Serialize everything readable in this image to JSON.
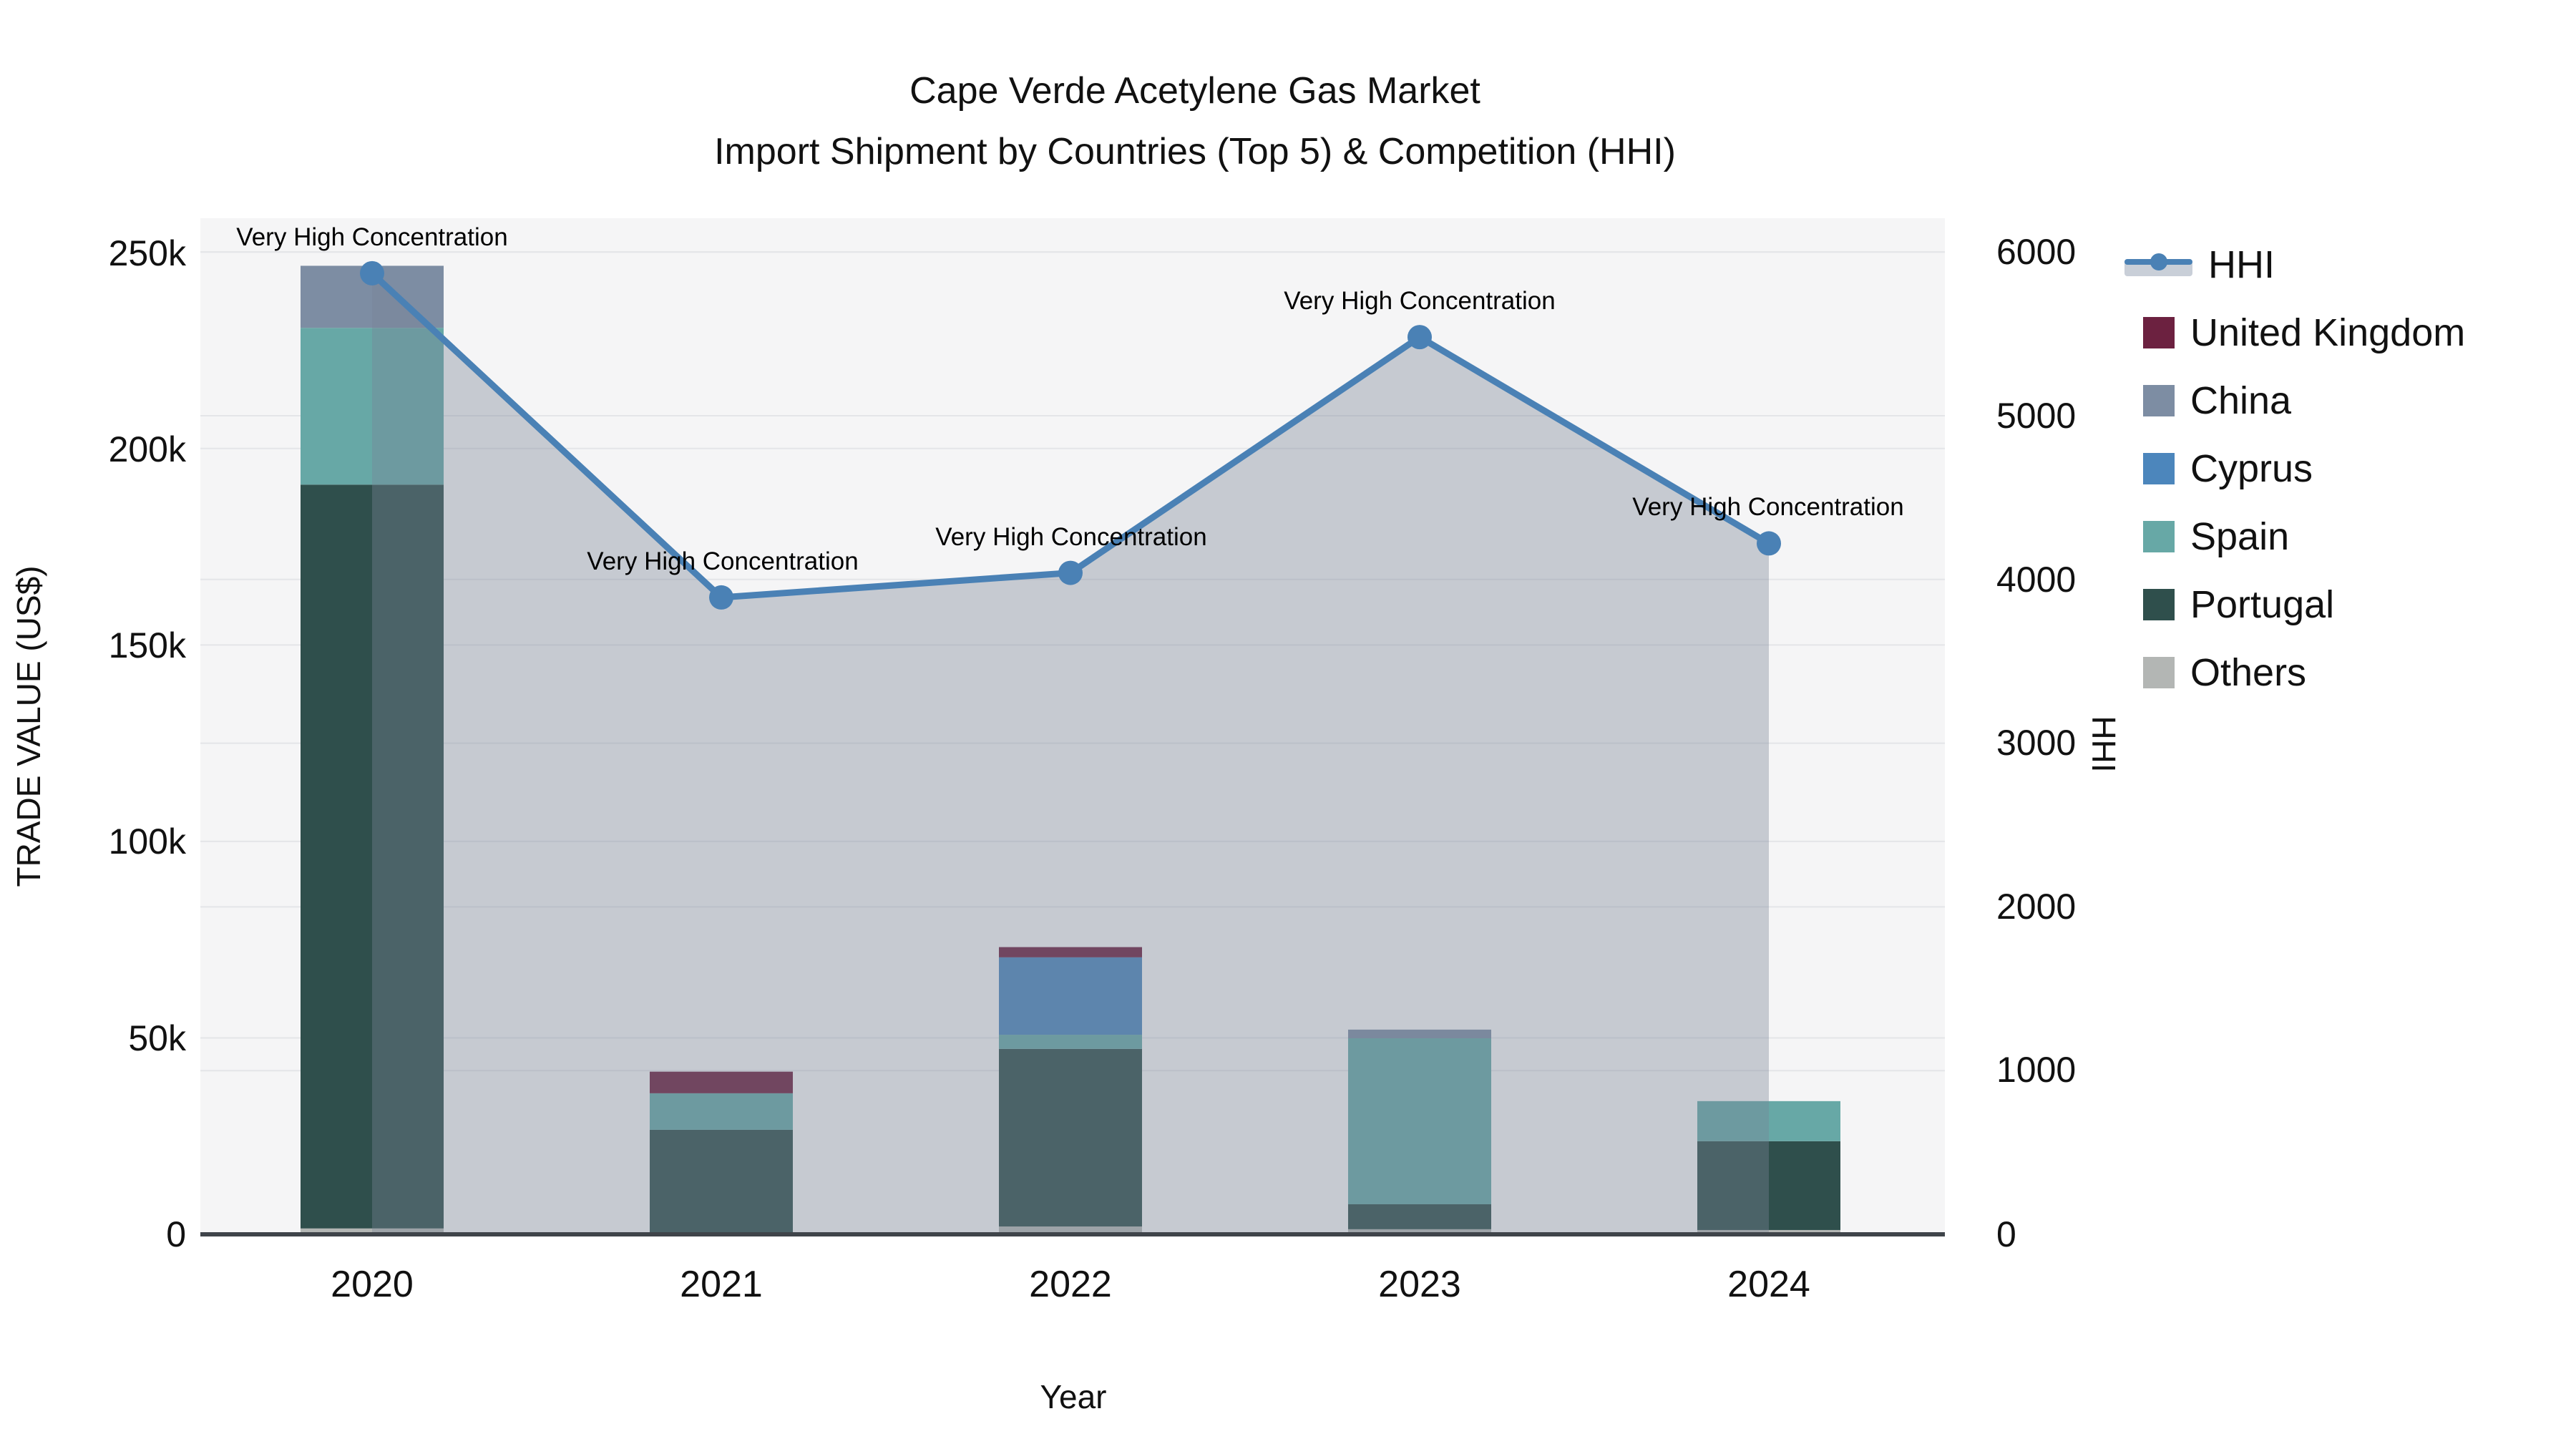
{
  "title": {
    "line1": "Cape Verde Acetylene Gas Market",
    "line2": "Import Shipment by Countries (Top 5) & Competition (HHI)"
  },
  "axes": {
    "x": {
      "title": "Year",
      "ticks": [
        "2020",
        "2021",
        "2022",
        "2023",
        "2024"
      ]
    },
    "y_left": {
      "title": "TRADE VALUE (US$)",
      "ticks": [
        "0",
        "50k",
        "100k",
        "150k",
        "200k",
        "250k"
      ]
    },
    "y_right": {
      "title": "HHI",
      "ticks": [
        "0",
        "1000",
        "2000",
        "3000",
        "4000",
        "5000",
        "6000"
      ]
    }
  },
  "legend": {
    "items": [
      {
        "label": "HHI",
        "type": "line",
        "color": "#4a81b5"
      },
      {
        "label": "United Kingdom",
        "type": "bar",
        "color": "#6c2140"
      },
      {
        "label": "China",
        "type": "bar",
        "color": "#7d8da3"
      },
      {
        "label": "Cyprus",
        "type": "bar",
        "color": "#4c86bc"
      },
      {
        "label": "Spain",
        "type": "bar",
        "color": "#67a8a6"
      },
      {
        "label": "Portugal",
        "type": "bar",
        "color": "#2f4f4c"
      },
      {
        "label": "Others",
        "type": "bar",
        "color": "#b3b6b4"
      }
    ]
  },
  "chart_data": {
    "type": "bar",
    "subtype": "stacked-bars-with-line",
    "categories": [
      "2020",
      "2021",
      "2022",
      "2023",
      "2024"
    ],
    "bar_value_unit": "US$",
    "series": [
      {
        "name": "Others",
        "color": "#b3b6b4",
        "values": [
          1500,
          0,
          2000,
          1300,
          1100
        ]
      },
      {
        "name": "Portugal",
        "color": "#2f4f4c",
        "values": [
          189300,
          26600,
          45200,
          6350,
          22600
        ]
      },
      {
        "name": "Spain",
        "color": "#67a8a6",
        "values": [
          39900,
          9300,
          3600,
          42250,
          10200
        ]
      },
      {
        "name": "Cyprus",
        "color": "#4c86bc",
        "values": [
          0,
          0,
          19700,
          0,
          0
        ]
      },
      {
        "name": "China",
        "color": "#7d8da3",
        "values": [
          15800,
          0,
          0,
          2200,
          0
        ]
      },
      {
        "name": "United Kingdom",
        "color": "#6c2140",
        "values": [
          0,
          5500,
          2600,
          0,
          0
        ]
      }
    ],
    "line_series": {
      "name": "HHI",
      "axis": "right",
      "color": "#4a81b5",
      "area_fill": "rgba(122,132,150,0.38)",
      "values": [
        5870,
        3890,
        4040,
        5480,
        4220
      ]
    },
    "annotations": [
      {
        "text": "Very High Concentration",
        "year": "2020"
      },
      {
        "text": "Very High Concentration",
        "year": "2021"
      },
      {
        "text": "Very High Concentration",
        "year": "2022"
      },
      {
        "text": "Very High Concentration",
        "year": "2023"
      },
      {
        "text": "Very High Concentration",
        "year": "2024"
      }
    ],
    "title": "Cape Verde Acetylene Gas Market — Import Shipment by Countries (Top 5) & Competition (HHI)",
    "xlabel": "Year",
    "ylabel_left": "TRADE VALUE (US$)",
    "ylabel_right": "HHI",
    "ylim_left": [
      0,
      258600
    ],
    "ylim_right": [
      0,
      6206
    ],
    "grid": true,
    "legend_position": "right",
    "plot_bg": "#f5f5f6",
    "grid_color": "#e4e5e8",
    "axisline_color": "#3f444a"
  }
}
